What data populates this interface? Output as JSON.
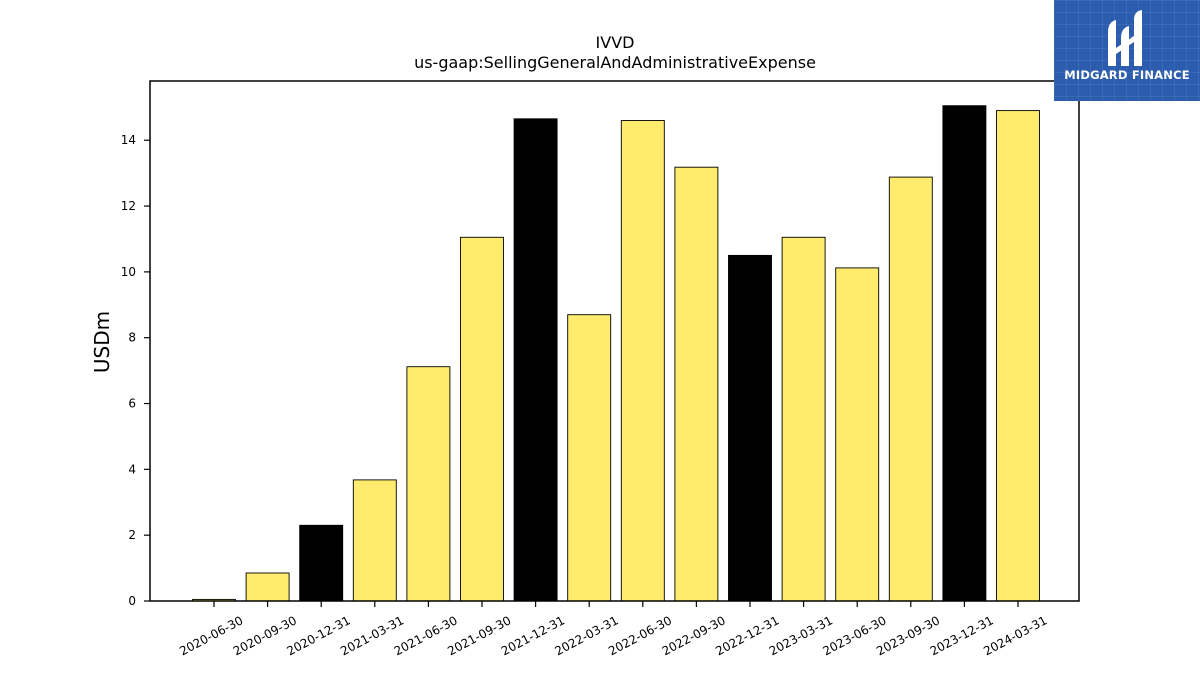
{
  "brand": {
    "name": "MIDGARD FINANCE",
    "color": "#2b5cad"
  },
  "chart_data": {
    "type": "bar",
    "title": "IVVD",
    "subtitle": "us-gaap:SellingGeneralAndAdministrativeExpense",
    "xlabel": "",
    "ylabel": "USDm",
    "ylim": [
      0,
      15.8
    ],
    "yticks": [
      0,
      2,
      4,
      6,
      8,
      10,
      12,
      14
    ],
    "grid": false,
    "categories": [
      "2020-06-30",
      "2020-09-30",
      "2020-12-31",
      "2021-03-31",
      "2021-06-30",
      "2021-09-30",
      "2021-12-31",
      "2022-03-31",
      "2022-06-30",
      "2022-09-30",
      "2022-12-31",
      "2023-03-31",
      "2023-06-30",
      "2023-09-30",
      "2023-12-31",
      "2024-03-31"
    ],
    "values": [
      0.05,
      0.85,
      2.3,
      3.68,
      7.12,
      11.05,
      14.65,
      8.7,
      14.6,
      13.18,
      10.5,
      11.05,
      10.12,
      12.88,
      15.05,
      14.9
    ],
    "colors": {
      "quarter": "#ffec6e",
      "year_end": "#000000",
      "edge": "#000000"
    }
  }
}
